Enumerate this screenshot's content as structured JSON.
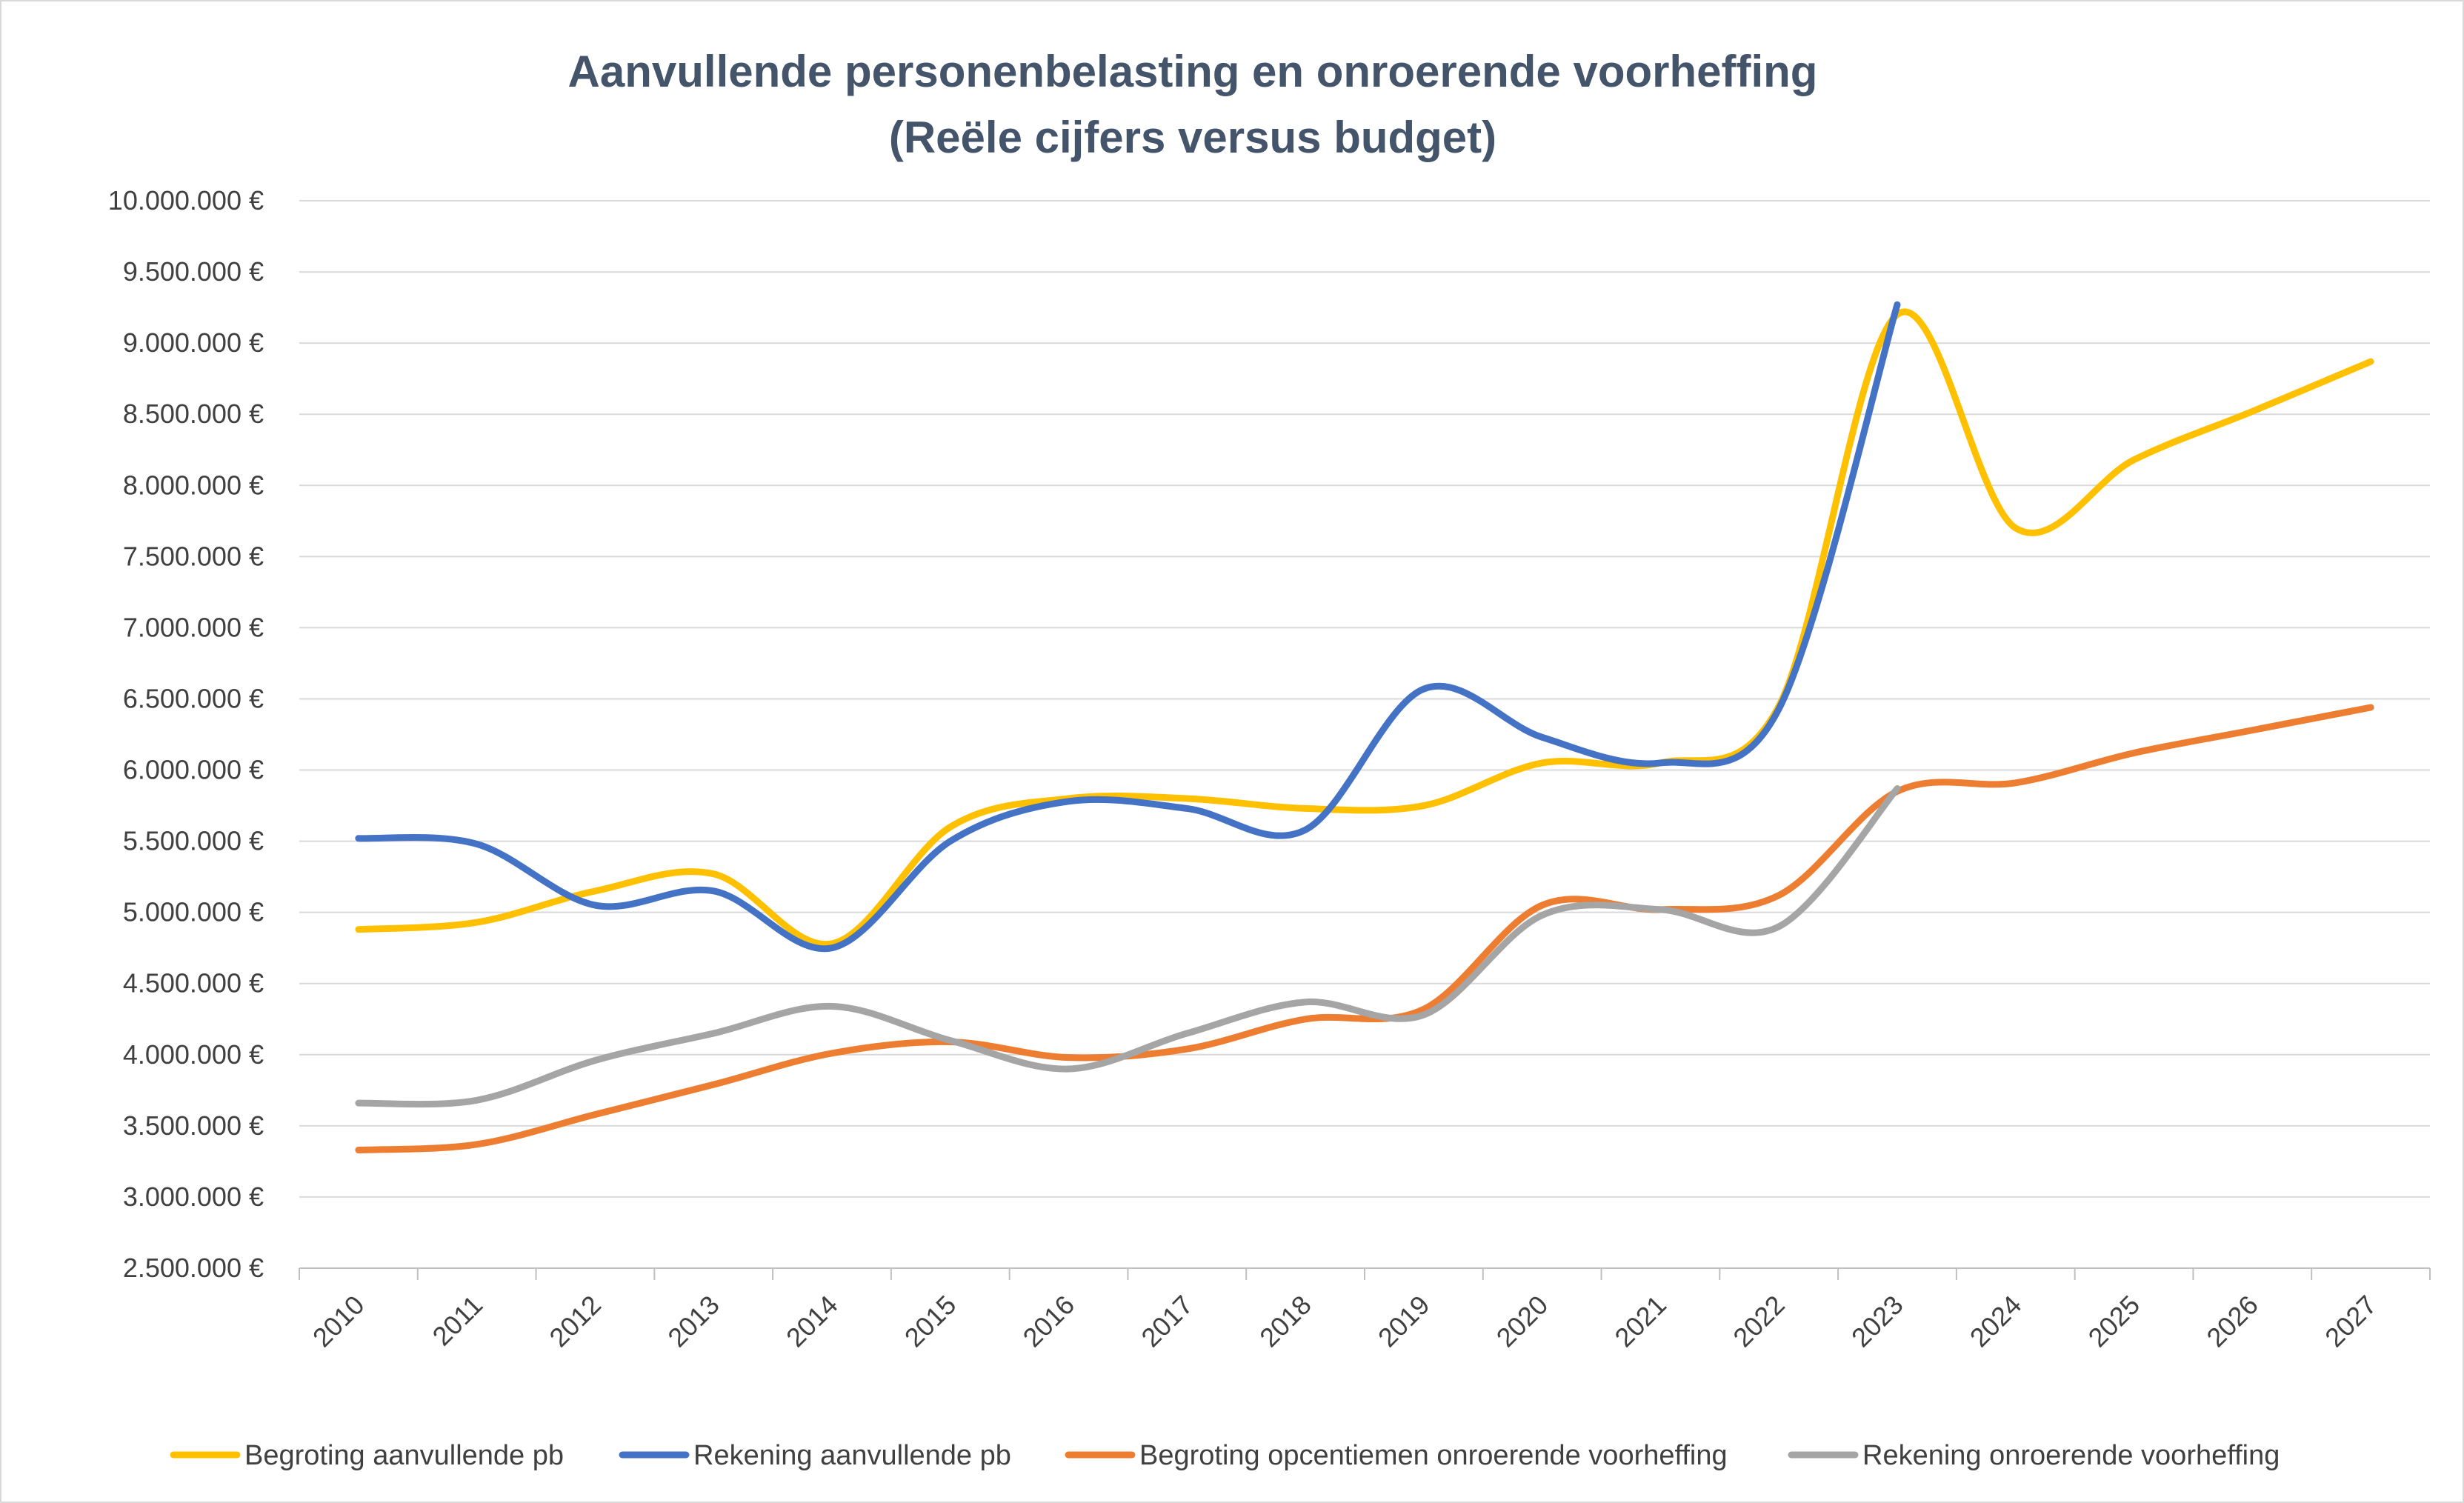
{
  "chart_data": {
    "type": "line",
    "title": "Aanvullende personenbelasting en onroerende voorheffing",
    "subtitle": "(Reële cijfers versus budget)",
    "xlabel": "",
    "ylabel": "",
    "categories": [
      "2010",
      "2011",
      "2012",
      "2013",
      "2014",
      "2015",
      "2016",
      "2017",
      "2018",
      "2019",
      "2020",
      "2021",
      "2022",
      "2023",
      "2024",
      "2025",
      "2026",
      "2027"
    ],
    "ylim": [
      2500000,
      10000000
    ],
    "y_ticks": [
      2500000,
      3000000,
      3500000,
      4000000,
      4500000,
      5000000,
      5500000,
      6000000,
      6500000,
      7000000,
      7500000,
      8000000,
      8500000,
      9000000,
      9500000,
      10000000
    ],
    "y_tick_labels": [
      "2.500.000 €",
      "3.000.000 €",
      "3.500.000 €",
      "4.000.000 €",
      "4.500.000 €",
      "5.000.000 €",
      "5.500.000 €",
      "6.000.000 €",
      "6.500.000 €",
      "7.000.000 €",
      "7.500.000 €",
      "8.000.000 €",
      "8.500.000 €",
      "9.000.000 €",
      "9.500.000 €",
      "10.000.000 €"
    ],
    "grid": true,
    "legend_position": "bottom",
    "smooth": true,
    "series": [
      {
        "name": "Begroting aanvullende pb",
        "color": "#ffc000",
        "values": [
          4880000,
          4930000,
          5150000,
          5270000,
          4780000,
          5600000,
          5800000,
          5800000,
          5730000,
          5750000,
          6050000,
          6050000,
          6450000,
          9200000,
          7700000,
          8180000,
          8520000,
          8870000
        ]
      },
      {
        "name": "Rekening aanvullende pb",
        "color": "#4472c4",
        "values": [
          5520000,
          5480000,
          5050000,
          5150000,
          4750000,
          5500000,
          5780000,
          5730000,
          5580000,
          6570000,
          6230000,
          6050000,
          6430000,
          9270000,
          null,
          null,
          null,
          null
        ]
      },
      {
        "name": "Begroting opcentiemen onroerende voorheffing",
        "color": "#ed7d31",
        "values": [
          3330000,
          3370000,
          3580000,
          3790000,
          4010000,
          4090000,
          3980000,
          4040000,
          4250000,
          4320000,
          5050000,
          5020000,
          5120000,
          5850000,
          5910000,
          6120000,
          6280000,
          6440000
        ]
      },
      {
        "name": "Rekening onroerende voorheffing",
        "color": "#a5a5a5",
        "values": [
          3660000,
          3680000,
          3960000,
          4150000,
          4340000,
          4100000,
          3900000,
          4150000,
          4370000,
          4280000,
          4980000,
          5020000,
          4900000,
          5870000,
          null,
          null,
          null,
          null
        ]
      }
    ]
  }
}
